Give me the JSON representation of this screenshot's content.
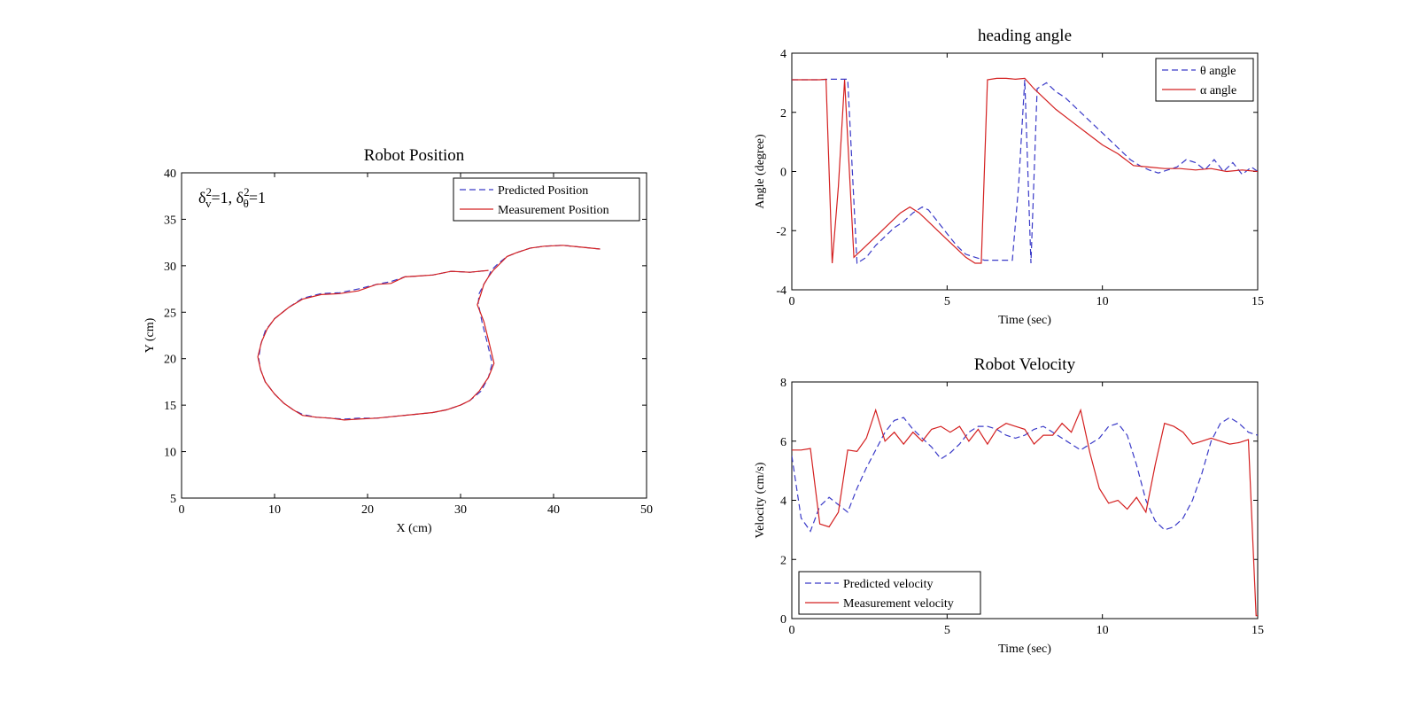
{
  "chart_data": [
    {
      "id": "position",
      "type": "line",
      "title": "Robot Position",
      "xlabel": "X (cm)",
      "ylabel": "Y (cm)",
      "xlim": [
        0,
        50
      ],
      "ylim": [
        5,
        40
      ],
      "xticks": [
        0,
        10,
        20,
        30,
        40,
        50
      ],
      "yticks": [
        5,
        10,
        15,
        20,
        25,
        30,
        35,
        40
      ],
      "grid": false,
      "legend_position": "top-right",
      "annotation": {
        "base1": "δ",
        "sup1": "2",
        "sub1": "v",
        "mid": "=1, ",
        "base2": "δ",
        "sup2": "2",
        "sub2": "θ",
        "end": "=1"
      },
      "series": [
        {
          "name": "Predicted Position",
          "style": "dashed",
          "color": "#3a3ac8",
          "x": [
            45.0,
            43.0,
            41.0,
            39.0,
            37.5,
            36.0,
            35.0,
            34.0,
            33.3,
            33.0,
            32.5,
            32.0,
            31.9,
            32.3,
            32.8,
            33.4,
            33.0,
            32.2,
            31.0,
            30.0,
            28.5,
            27.0,
            25.0,
            23.0,
            21.0,
            19.0,
            17.5,
            16.0,
            14.5,
            13.0,
            12.0,
            11.0,
            10.0,
            9.0,
            8.5,
            8.3,
            8.5,
            9.0,
            10.0,
            11.5,
            13.0,
            15.0,
            17.0,
            19.0,
            21.0,
            22.5,
            24.0,
            25.5,
            27.0,
            29.0,
            31.0,
            33.0
          ],
          "y": [
            31.8,
            32.0,
            32.2,
            32.1,
            31.9,
            31.4,
            31.0,
            30.2,
            29.5,
            28.8,
            28.0,
            27.0,
            26.0,
            24.0,
            22.0,
            19.5,
            18.0,
            16.5,
            15.5,
            15.0,
            14.5,
            14.2,
            14.0,
            13.8,
            13.6,
            13.6,
            13.5,
            13.6,
            13.7,
            14.0,
            14.5,
            15.2,
            16.2,
            17.5,
            18.8,
            20.0,
            21.5,
            23.0,
            24.3,
            25.5,
            26.5,
            27.0,
            27.1,
            27.5,
            28.0,
            28.3,
            28.8,
            28.9,
            29.0,
            29.4,
            29.3,
            29.5
          ]
        },
        {
          "name": "Measurement Position",
          "style": "solid",
          "color": "#d42020",
          "x": [
            45.0,
            43.0,
            41.0,
            39.0,
            37.5,
            36.0,
            35.0,
            34.0,
            33.5,
            33.0,
            32.5,
            32.2,
            31.8,
            32.5,
            33.0,
            33.6,
            33.0,
            32.0,
            31.0,
            30.0,
            28.5,
            27.0,
            25.0,
            23.0,
            21.0,
            19.0,
            17.5,
            16.0,
            14.5,
            13.0,
            12.0,
            11.0,
            10.0,
            9.0,
            8.5,
            8.2,
            8.6,
            9.2,
            10.0,
            11.5,
            13.0,
            15.0,
            17.0,
            19.0,
            21.0,
            22.5,
            24.0,
            25.5,
            27.0,
            29.0,
            31.0,
            33.0
          ],
          "y": [
            31.8,
            32.0,
            32.2,
            32.1,
            31.9,
            31.4,
            31.0,
            30.0,
            29.5,
            28.8,
            28.0,
            27.0,
            25.8,
            24.0,
            22.0,
            19.5,
            18.0,
            16.5,
            15.5,
            15.0,
            14.5,
            14.2,
            14.0,
            13.8,
            13.6,
            13.5,
            13.4,
            13.6,
            13.7,
            13.9,
            14.5,
            15.2,
            16.2,
            17.5,
            18.8,
            20.2,
            21.8,
            23.2,
            24.3,
            25.5,
            26.4,
            26.9,
            27.0,
            27.3,
            28.0,
            28.1,
            28.8,
            28.9,
            29.0,
            29.4,
            29.3,
            29.5
          ]
        }
      ]
    },
    {
      "id": "heading",
      "type": "line",
      "title": "heading angle",
      "xlabel": "Time (sec)",
      "ylabel": "Angle (degree)",
      "xlim": [
        0,
        15
      ],
      "ylim": [
        -4,
        4
      ],
      "xticks": [
        0,
        5,
        10,
        15
      ],
      "yticks": [
        -4,
        -2,
        0,
        2,
        4
      ],
      "grid": false,
      "legend_position": "top-right",
      "series": [
        {
          "name": "θ angle",
          "style": "dashed",
          "color": "#3a3ac8",
          "x": [
            0,
            0.3,
            0.6,
            0.9,
            1.2,
            1.5,
            1.8,
            2.1,
            2.4,
            2.7,
            3.0,
            3.3,
            3.6,
            3.9,
            4.2,
            4.4,
            4.7,
            5.0,
            5.3,
            5.6,
            5.9,
            6.2,
            6.5,
            6.8,
            7.1,
            7.3,
            7.5,
            7.7,
            7.9,
            8.2,
            8.5,
            8.8,
            9.1,
            9.4,
            9.7,
            10.0,
            10.3,
            10.6,
            10.9,
            11.2,
            11.5,
            11.8,
            12.1,
            12.4,
            12.7,
            13.0,
            13.3,
            13.6,
            13.9,
            14.2,
            14.5,
            14.8,
            15.0
          ],
          "y": [
            3.1,
            3.1,
            3.1,
            3.1,
            3.12,
            3.12,
            3.12,
            -3.1,
            -2.9,
            -2.5,
            -2.2,
            -1.9,
            -1.7,
            -1.4,
            -1.2,
            -1.3,
            -1.7,
            -2.1,
            -2.5,
            -2.8,
            -2.9,
            -3.0,
            -3.0,
            -3.0,
            -3.0,
            -0.5,
            3.1,
            -3.1,
            2.8,
            3.0,
            2.7,
            2.5,
            2.2,
            1.9,
            1.6,
            1.3,
            1.0,
            0.7,
            0.4,
            0.2,
            0.05,
            -0.05,
            0.05,
            0.15,
            0.4,
            0.3,
            0.05,
            0.4,
            0.0,
            0.3,
            -0.1,
            0.15,
            0.0
          ]
        },
        {
          "name": "α angle",
          "style": "solid",
          "color": "#d42020",
          "x": [
            0,
            0.3,
            0.6,
            0.9,
            1.1,
            1.3,
            1.5,
            1.7,
            2.0,
            2.3,
            2.6,
            2.9,
            3.2,
            3.5,
            3.8,
            4.1,
            4.4,
            4.7,
            5.0,
            5.3,
            5.6,
            5.9,
            6.1,
            6.3,
            6.6,
            6.9,
            7.2,
            7.5,
            7.8,
            8.1,
            8.5,
            9.0,
            9.5,
            10.0,
            10.5,
            11.0,
            11.5,
            12.0,
            12.5,
            13.0,
            13.5,
            14.0,
            14.5,
            15.0
          ],
          "y": [
            3.1,
            3.1,
            3.1,
            3.1,
            3.12,
            -3.1,
            -0.5,
            3.1,
            -2.9,
            -2.6,
            -2.3,
            -2.0,
            -1.7,
            -1.4,
            -1.2,
            -1.4,
            -1.7,
            -2.0,
            -2.3,
            -2.6,
            -2.9,
            -3.1,
            -3.1,
            3.1,
            3.15,
            3.15,
            3.12,
            3.15,
            2.8,
            2.5,
            2.1,
            1.7,
            1.3,
            0.9,
            0.6,
            0.2,
            0.15,
            0.1,
            0.1,
            0.05,
            0.1,
            0.0,
            0.05,
            0.0
          ]
        }
      ]
    },
    {
      "id": "velocity",
      "type": "line",
      "title": "Robot Velocity",
      "xlabel": "Time (sec)",
      "ylabel": "Velocity (cm/s)",
      "xlim": [
        0,
        15
      ],
      "ylim": [
        0,
        8
      ],
      "xticks": [
        0,
        5,
        10,
        15
      ],
      "yticks": [
        0,
        2,
        4,
        6,
        8
      ],
      "grid": false,
      "legend_position": "bottom-left",
      "series": [
        {
          "name": "Predicted velocity",
          "style": "dashed",
          "color": "#3a3ac8",
          "x": [
            0,
            0.3,
            0.6,
            0.9,
            1.2,
            1.5,
            1.8,
            2.1,
            2.4,
            2.7,
            3.0,
            3.3,
            3.6,
            3.9,
            4.2,
            4.5,
            4.8,
            5.1,
            5.4,
            5.7,
            6.0,
            6.3,
            6.6,
            6.9,
            7.2,
            7.5,
            7.8,
            8.1,
            8.4,
            8.7,
            9.0,
            9.3,
            9.6,
            9.9,
            10.2,
            10.5,
            10.8,
            11.1,
            11.4,
            11.7,
            12.0,
            12.3,
            12.6,
            12.9,
            13.2,
            13.5,
            13.8,
            14.1,
            14.4,
            14.7,
            15.0
          ],
          "y": [
            5.5,
            3.4,
            2.95,
            3.8,
            4.1,
            3.85,
            3.6,
            4.4,
            5.1,
            5.7,
            6.3,
            6.7,
            6.8,
            6.4,
            6.1,
            5.8,
            5.4,
            5.6,
            5.9,
            6.3,
            6.5,
            6.5,
            6.4,
            6.2,
            6.1,
            6.2,
            6.4,
            6.5,
            6.3,
            6.1,
            5.9,
            5.7,
            5.9,
            6.1,
            6.5,
            6.6,
            6.2,
            5.2,
            4.0,
            3.3,
            3.0,
            3.1,
            3.4,
            4.0,
            4.9,
            6.0,
            6.6,
            6.8,
            6.6,
            6.3,
            6.2
          ]
        },
        {
          "name": "Measurement velocity",
          "style": "solid",
          "color": "#d42020",
          "x": [
            0,
            0.3,
            0.6,
            0.9,
            1.2,
            1.5,
            1.8,
            2.1,
            2.4,
            2.7,
            3.0,
            3.3,
            3.6,
            3.9,
            4.2,
            4.5,
            4.8,
            5.1,
            5.4,
            5.7,
            6.0,
            6.3,
            6.6,
            6.9,
            7.2,
            7.5,
            7.8,
            8.1,
            8.4,
            8.7,
            9.0,
            9.3,
            9.6,
            9.9,
            10.2,
            10.5,
            10.8,
            11.1,
            11.4,
            11.7,
            12.0,
            12.3,
            12.6,
            12.9,
            13.2,
            13.5,
            13.8,
            14.1,
            14.4,
            14.7,
            14.95,
            15.0
          ],
          "y": [
            5.7,
            5.7,
            5.75,
            3.2,
            3.1,
            3.6,
            5.7,
            5.65,
            6.1,
            7.05,
            6.0,
            6.3,
            5.9,
            6.3,
            6.0,
            6.4,
            6.5,
            6.3,
            6.5,
            6.0,
            6.4,
            5.9,
            6.4,
            6.6,
            6.5,
            6.4,
            5.9,
            6.2,
            6.2,
            6.6,
            6.3,
            7.05,
            5.6,
            4.4,
            3.9,
            4.0,
            3.7,
            4.1,
            3.6,
            5.2,
            6.6,
            6.5,
            6.3,
            5.9,
            6.0,
            6.1,
            6.0,
            5.9,
            5.95,
            6.05,
            0.1,
            0.1
          ]
        }
      ]
    }
  ]
}
